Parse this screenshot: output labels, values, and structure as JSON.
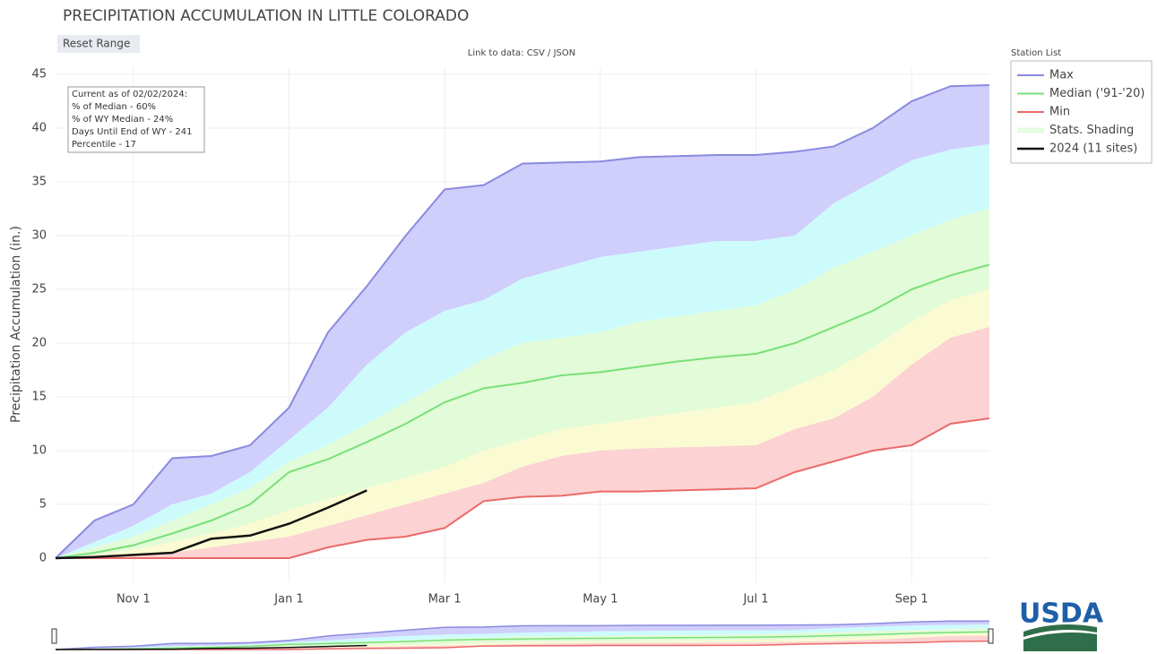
{
  "chart_data": {
    "type": "line",
    "title": "PRECIPITATION ACCUMULATION IN LITTLE COLORADO",
    "y_label": "Precipitation Accumulation (in.)",
    "reset_button": "Reset Range",
    "data_link": "Link to data: CSV / JSON",
    "legend_title": "Station List",
    "logo": "USDA",
    "annotation": [
      "Current as of 02/02/2024:",
      "% of Median - 60%",
      "% of WY Median - 24%",
      "Days Until End of WY - 241",
      "Percentile - 17"
    ],
    "categories": [
      null,
      null,
      "Nov 1",
      null,
      null,
      null,
      "Jan 1",
      null,
      null,
      null,
      "Mar 1",
      null,
      null,
      null,
      "May 1",
      null,
      null,
      null,
      "Jul 1",
      null,
      null,
      null,
      "Sep 1",
      null,
      null
    ],
    "ylim": [
      -2.25,
      45.67
    ],
    "yticks": [
      0,
      5,
      10,
      15,
      20,
      25,
      30,
      35,
      40,
      45
    ],
    "grid": true,
    "legend_position": "right",
    "series": [
      {
        "name": "Max",
        "color": "#8a8ae0",
        "values": [
          0,
          3.5,
          5,
          9.3,
          9.5,
          10.5,
          14,
          21,
          25.3,
          30,
          34.3,
          34.7,
          36.7,
          36.8,
          36.9,
          37.3,
          37.4,
          37.5,
          37.5,
          37.8,
          38.3,
          40,
          42.5,
          43.9,
          44
        ]
      },
      {
        "name": "Median ('91-'20)",
        "color": "#78e078",
        "values": [
          0,
          0.5,
          1.2,
          2.3,
          3.5,
          5,
          8,
          9.2,
          10.8,
          12.5,
          14.5,
          15.8,
          16.3,
          17,
          17.3,
          17.8,
          18.3,
          18.7,
          19,
          20,
          21.5,
          23,
          25,
          26.3,
          27.3
        ]
      },
      {
        "name": "Min",
        "color": "#ea6a6a",
        "values": [
          0,
          0,
          0,
          0,
          0,
          0,
          0,
          1,
          1.7,
          2,
          2.8,
          5.3,
          5.7,
          5.8,
          6.2,
          6.2,
          6.3,
          6.4,
          6.5,
          8,
          9,
          10,
          10.5,
          12.5,
          13
        ]
      },
      {
        "name": "2024 (11 sites)",
        "color": "#111111",
        "values": [
          0,
          0.1,
          0.3,
          0.5,
          1.8,
          2.1,
          3.2,
          4.7,
          6.3,
          null,
          null,
          null,
          null,
          null,
          null,
          null,
          null,
          null,
          null,
          null,
          null,
          null,
          null,
          null,
          null
        ]
      }
    ],
    "shading": {
      "name": "Stats. Shading",
      "color": "#e4fce0",
      "colors": [
        "#d0cefb",
        "#cdfbfc",
        "#e2fbd8",
        "#fafbd2",
        "#fcd2d2"
      ],
      "boundaries": [
        {
          "values": [
            0,
            1.5,
            3,
            5,
            6,
            8,
            11,
            14,
            18,
            21,
            23,
            24,
            26,
            27,
            28,
            28.5,
            29,
            29.5,
            29.5,
            30,
            33,
            35,
            37,
            38,
            38.5
          ]
        },
        {
          "values": [
            0,
            1,
            2,
            3.5,
            5,
            6.5,
            9,
            10.5,
            12.5,
            14.5,
            16.5,
            18.5,
            20,
            20.5,
            21,
            22,
            22.5,
            23,
            23.5,
            25,
            27,
            28.5,
            30,
            31.5,
            32.5
          ]
        },
        {
          "values": [
            0,
            0.3,
            0.8,
            1.5,
            2.3,
            3.2,
            4.5,
            5.5,
            6.5,
            7.5,
            8.5,
            10,
            11,
            12,
            12.5,
            13,
            13.5,
            14,
            14.5,
            16,
            17.5,
            19.5,
            22,
            24,
            25
          ]
        },
        {
          "values": [
            0,
            0,
            0.2,
            0.5,
            1,
            1.5,
            2,
            3,
            4,
            5,
            6,
            7,
            8.5,
            9.5,
            10,
            10.2,
            10.3,
            10.4,
            10.5,
            12,
            13,
            15,
            18,
            20.5,
            21.5
          ]
        }
      ]
    }
  }
}
